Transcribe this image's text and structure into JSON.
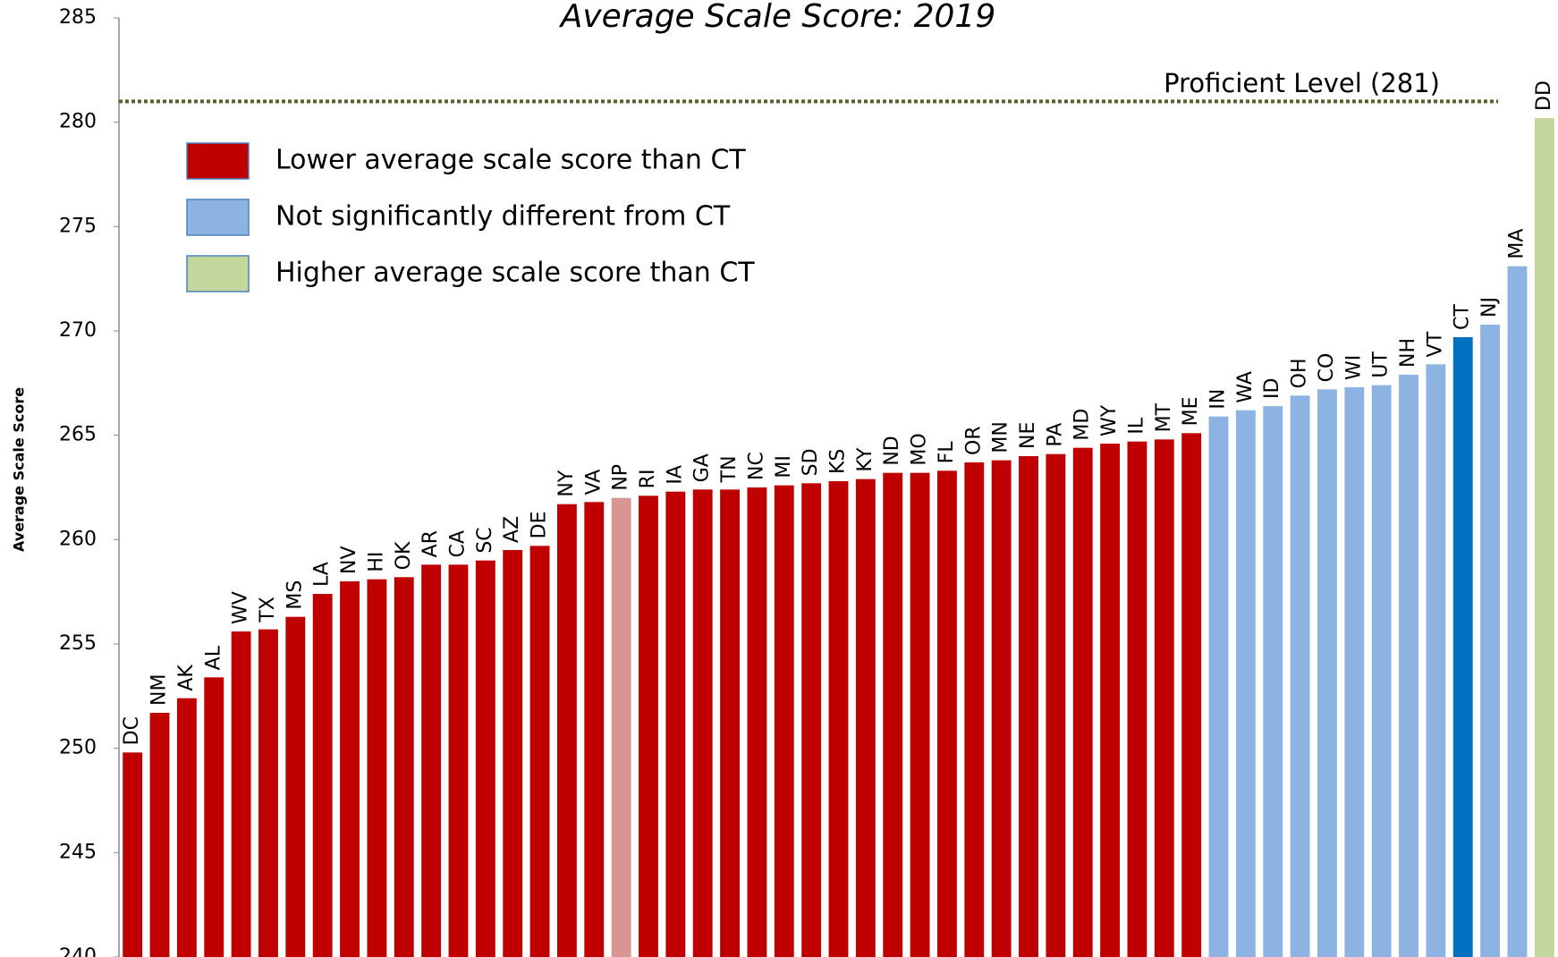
{
  "chart_data": {
    "type": "bar",
    "title": "Average Scale Score: 2019",
    "y_label": "Average Scale Score",
    "categories": [
      "DC",
      "NM",
      "AK",
      "AL",
      "WV",
      "TX",
      "MS",
      "LA",
      "NV",
      "HI",
      "OK",
      "AR",
      "CA",
      "SC",
      "AZ",
      "DE",
      "NY",
      "VA",
      "NP",
      "RI",
      "IA",
      "GA",
      "TN",
      "NC",
      "MI",
      "SD",
      "KS",
      "KY",
      "ND",
      "MO",
      "FL",
      "OR",
      "MN",
      "NE",
      "PA",
      "MD",
      "WY",
      "IL",
      "MT",
      "ME",
      "IN",
      "WA",
      "ID",
      "OH",
      "CO",
      "WI",
      "UT",
      "NH",
      "VT",
      "CT",
      "NJ",
      "MA",
      "DD"
    ],
    "values": [
      249.8,
      251.7,
      252.4,
      253.4,
      255.6,
      255.7,
      256.3,
      257.4,
      258.0,
      258.1,
      258.2,
      258.8,
      258.8,
      259.0,
      259.5,
      259.7,
      261.7,
      261.8,
      262.0,
      262.1,
      262.3,
      262.4,
      262.4,
      262.5,
      262.6,
      262.7,
      262.8,
      262.9,
      263.2,
      263.2,
      263.3,
      263.7,
      263.8,
      264.0,
      264.1,
      264.4,
      264.6,
      264.7,
      264.8,
      265.1,
      265.9,
      266.2,
      266.4,
      266.9,
      267.2,
      267.3,
      267.4,
      267.9,
      268.4,
      269.7,
      270.3,
      273.1,
      280.2
    ],
    "colors": [
      "#c00000",
      "#c00000",
      "#c00000",
      "#c00000",
      "#c00000",
      "#c00000",
      "#c00000",
      "#c00000",
      "#c00000",
      "#c00000",
      "#c00000",
      "#c00000",
      "#c00000",
      "#c00000",
      "#c00000",
      "#c00000",
      "#c00000",
      "#c00000",
      "#d99594",
      "#c00000",
      "#c00000",
      "#c00000",
      "#c00000",
      "#c00000",
      "#c00000",
      "#c00000",
      "#c00000",
      "#c00000",
      "#c00000",
      "#c00000",
      "#c00000",
      "#c00000",
      "#c00000",
      "#c00000",
      "#c00000",
      "#c00000",
      "#c00000",
      "#c00000",
      "#c00000",
      "#c00000",
      "#8db3e2",
      "#8db3e2",
      "#8db3e2",
      "#8db3e2",
      "#8db3e2",
      "#8db3e2",
      "#8db3e2",
      "#8db3e2",
      "#8db3e2",
      "#0070c0",
      "#8db3e2",
      "#8db3e2",
      "#c3d69b"
    ],
    "legend": [
      {
        "name": "Lower average scale score than CT",
        "color": "#c00000"
      },
      {
        "name": "Not significantly different from CT",
        "color": "#8db3e2"
      },
      {
        "name": "Higher average scale score than CT",
        "color": "#c3d69b"
      }
    ],
    "proficient_level": {
      "value": 281,
      "label": "Proficient Level (281)"
    },
    "ylim": [
      240,
      285
    ],
    "yticks": [
      240,
      245,
      250,
      255,
      260,
      265,
      270,
      275,
      280,
      285
    ],
    "grid": false
  }
}
